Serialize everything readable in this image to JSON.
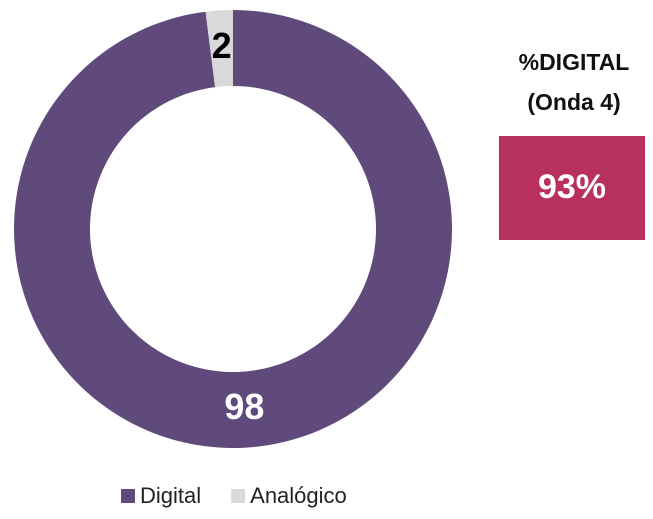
{
  "chart_data": {
    "type": "donut",
    "categories": [
      "Digital",
      "Analógico"
    ],
    "values": [
      98,
      2
    ],
    "colors": [
      "#604a7b",
      "#d9d9d9"
    ],
    "label_colors": [
      "#ffffff",
      "#000000"
    ],
    "legend": "bottom",
    "kpi": {
      "title_lines": [
        "%DIGITAL",
        "(Onda 4)"
      ],
      "value": 93,
      "value_label": "93%",
      "color": "#b8305e"
    }
  }
}
